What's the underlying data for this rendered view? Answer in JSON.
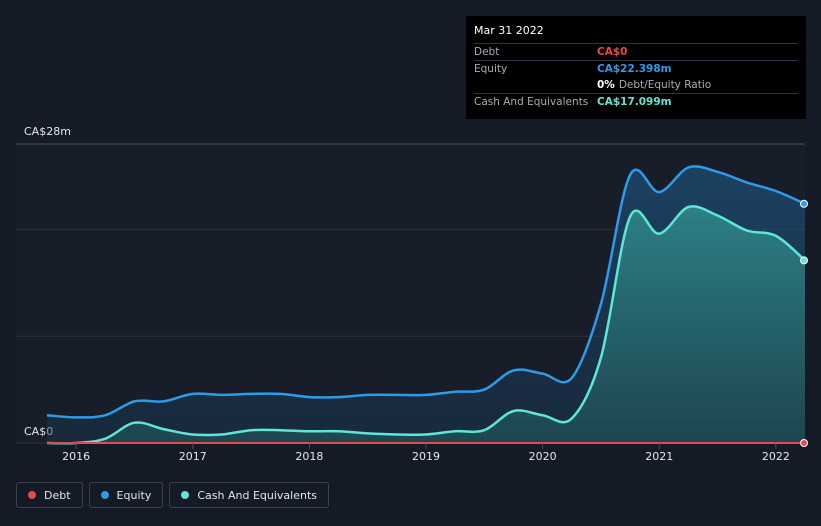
{
  "tooltip": {
    "date": "Mar 31 2022",
    "rows": [
      {
        "label": "Debt",
        "value": "CA$0",
        "color": "#e8484f"
      },
      {
        "label": "Equity",
        "value": "CA$22.398m",
        "color": "#2f9be8"
      },
      {
        "label": "",
        "value": "0%",
        "suffix": "Debt/Equity Ratio",
        "color": "#ffffff"
      },
      {
        "label": "Cash And Equivalents",
        "value": "CA$17.099m",
        "color": "#5ee6d6"
      }
    ]
  },
  "legend": [
    {
      "label": "Debt",
      "color": "#e8484f"
    },
    {
      "label": "Equity",
      "color": "#2f9be8"
    },
    {
      "label": "Cash And Equivalents",
      "color": "#5ee6d6"
    }
  ],
  "chart_data": {
    "type": "area",
    "y_top_label": "CA$28m",
    "y_bottom_label": "CA$0",
    "ylim": [
      0,
      28
    ],
    "xlim": [
      2015.75,
      2022.25
    ],
    "x_ticks": [
      {
        "x": 2016,
        "label": "2016"
      },
      {
        "x": 2017,
        "label": "2017"
      },
      {
        "x": 2018,
        "label": "2018"
      },
      {
        "x": 2019,
        "label": "2019"
      },
      {
        "x": 2020,
        "label": "2020"
      },
      {
        "x": 2021,
        "label": "2021"
      },
      {
        "x": 2022,
        "label": "2022"
      }
    ],
    "grid": true,
    "legend_position": "bottom-left",
    "series": [
      {
        "name": "Equity",
        "color": "#2f9be8",
        "points": [
          [
            2015.75,
            2.6
          ],
          [
            2016.0,
            2.4
          ],
          [
            2016.25,
            2.6
          ],
          [
            2016.5,
            3.9
          ],
          [
            2016.75,
            3.9
          ],
          [
            2017.0,
            4.6
          ],
          [
            2017.25,
            4.5
          ],
          [
            2017.5,
            4.6
          ],
          [
            2017.75,
            4.6
          ],
          [
            2018.0,
            4.3
          ],
          [
            2018.25,
            4.3
          ],
          [
            2018.5,
            4.5
          ],
          [
            2018.75,
            4.5
          ],
          [
            2019.0,
            4.5
          ],
          [
            2019.25,
            4.8
          ],
          [
            2019.5,
            5.0
          ],
          [
            2019.75,
            6.8
          ],
          [
            2020.0,
            6.5
          ],
          [
            2020.25,
            6.1
          ],
          [
            2020.5,
            13.0
          ],
          [
            2020.75,
            25.1
          ],
          [
            2021.0,
            23.5
          ],
          [
            2021.25,
            25.8
          ],
          [
            2021.5,
            25.4
          ],
          [
            2021.75,
            24.4
          ],
          [
            2022.0,
            23.6
          ],
          [
            2022.25,
            22.4
          ]
        ]
      },
      {
        "name": "Cash And Equivalents",
        "color": "#5ee6d6",
        "points": [
          [
            2015.75,
            0.0
          ],
          [
            2016.0,
            0.0
          ],
          [
            2016.25,
            0.4
          ],
          [
            2016.5,
            1.9
          ],
          [
            2016.75,
            1.3
          ],
          [
            2017.0,
            0.8
          ],
          [
            2017.25,
            0.8
          ],
          [
            2017.5,
            1.2
          ],
          [
            2017.75,
            1.2
          ],
          [
            2018.0,
            1.1
          ],
          [
            2018.25,
            1.1
          ],
          [
            2018.5,
            0.9
          ],
          [
            2018.75,
            0.8
          ],
          [
            2019.0,
            0.8
          ],
          [
            2019.25,
            1.1
          ],
          [
            2019.5,
            1.2
          ],
          [
            2019.75,
            3.0
          ],
          [
            2020.0,
            2.6
          ],
          [
            2020.25,
            2.3
          ],
          [
            2020.5,
            8.0
          ],
          [
            2020.75,
            21.2
          ],
          [
            2021.0,
            19.6
          ],
          [
            2021.25,
            22.1
          ],
          [
            2021.5,
            21.3
          ],
          [
            2021.75,
            19.9
          ],
          [
            2022.0,
            19.4
          ],
          [
            2022.25,
            17.1
          ]
        ]
      },
      {
        "name": "Debt",
        "color": "#e8484f",
        "points": [
          [
            2015.75,
            0
          ],
          [
            2022.25,
            0
          ]
        ]
      }
    ]
  }
}
